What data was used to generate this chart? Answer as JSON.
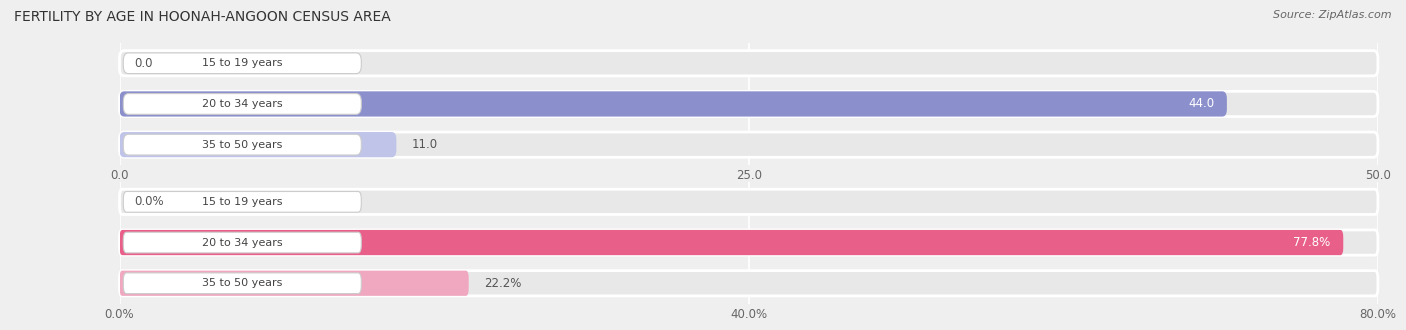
{
  "title": "FERTILITY BY AGE IN HOONAH-ANGOON CENSUS AREA",
  "source": "Source: ZipAtlas.com",
  "top_chart": {
    "categories": [
      "15 to 19 years",
      "20 to 34 years",
      "35 to 50 years"
    ],
    "values": [
      0.0,
      44.0,
      11.0
    ],
    "bar_color": "#8b8fcc",
    "bar_light_color": "#c0c4e8",
    "xlim": [
      0,
      50
    ],
    "xticks": [
      0.0,
      25.0,
      50.0
    ],
    "xticklabels": [
      "0.0",
      "25.0",
      "50.0"
    ],
    "value_suffix": ""
  },
  "bottom_chart": {
    "categories": [
      "15 to 19 years",
      "20 to 34 years",
      "35 to 50 years"
    ],
    "values": [
      0.0,
      77.8,
      22.2
    ],
    "bar_color": "#e8608a",
    "bar_light_color": "#f0a8c0",
    "xlim": [
      0,
      80
    ],
    "xticks": [
      0.0,
      40.0,
      80.0
    ],
    "xticklabels": [
      "0.0%",
      "40.0%",
      "80.0%"
    ],
    "value_suffix": "%"
  },
  "bg_color": "#efefef",
  "row_bg_color": "#e8e8e8",
  "pill_color": "#ffffff",
  "pill_border_color": "#cccccc",
  "bar_height": 0.62,
  "label_fontsize": 8.5,
  "category_fontsize": 8,
  "title_fontsize": 10,
  "source_fontsize": 8
}
